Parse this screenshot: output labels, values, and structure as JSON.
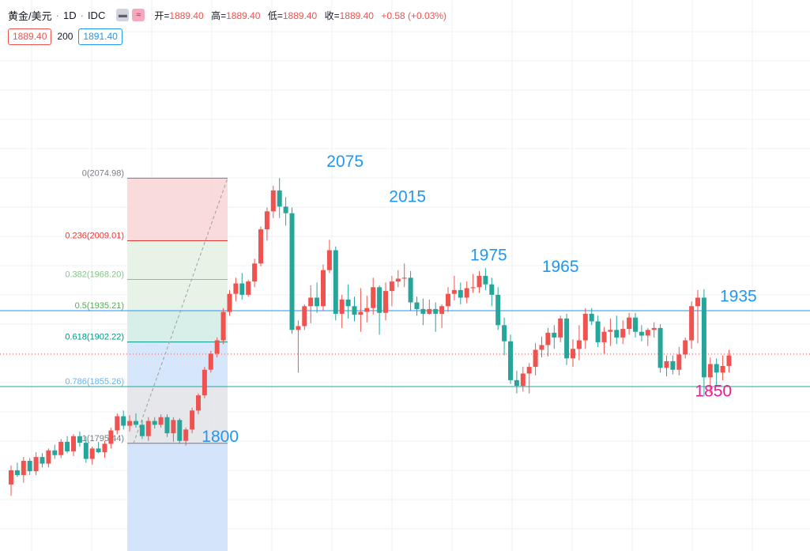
{
  "header": {
    "symbol": "黄金/美元",
    "interval": "1D",
    "source": "IDC",
    "sep": "·",
    "mode_icons": [
      "minus-icon",
      "wave-icon"
    ],
    "open_label": "开=",
    "open": "1889.40",
    "high_label": "高=",
    "high": "1889.40",
    "low_label": "低=",
    "low": "1889.40",
    "close_label": "收=",
    "close": "1889.40",
    "change": "+0.58 (+0.03%)"
  },
  "quote": {
    "bid": "1889.40",
    "spread": "200",
    "ask": "1891.40"
  },
  "colors": {
    "up": "#ef5350",
    "down": "#26a69a",
    "annotation": "#2196f3",
    "annotation_low": "#e91e9c",
    "grid": "#eef0f3",
    "fib_top": "#f8d7d8",
    "fib_mid": "#e6f2e4",
    "fib_lower": "#d3ece7",
    "fib_bottom": "#e3e4e8",
    "fib_base": "#d3e4fb"
  },
  "chart_data": {
    "type": "candlestick",
    "y_range": [
      1730,
      2090
    ],
    "fib_levels": [
      {
        "ratio": "0",
        "label": "0(2074.98)",
        "price": 2074.98,
        "color": "#787b86"
      },
      {
        "ratio": "0.236",
        "label": "0.236(2009.01)",
        "price": 2009.01,
        "color": "#e53935"
      },
      {
        "ratio": "0.382",
        "label": "0.382(1968.20)",
        "price": 1968.2,
        "color": "#81c784"
      },
      {
        "ratio": "0.5",
        "label": "0.5(1935.21)",
        "price": 1935.21,
        "color": "#4caf50"
      },
      {
        "ratio": "0.618",
        "label": "0.618(1902.22)",
        "price": 1902.22,
        "color": "#009688"
      },
      {
        "ratio": "0.786",
        "label": "0.786(1855.26)",
        "price": 1855.26,
        "color": "#64b5f6"
      },
      {
        "ratio": "1",
        "label": "1(1795.44)",
        "price": 1795.44,
        "color": "#787b86"
      }
    ],
    "horizontal_lines": [
      {
        "price": 1935.21,
        "color": "#2196f3"
      },
      {
        "price": 1855.26,
        "color": "#26a69a"
      }
    ],
    "current_price_line": 1889.4,
    "annotations": [
      {
        "text": "2075",
        "price": 2087,
        "bar": 53.5,
        "color": "#2196f3"
      },
      {
        "text": "2015",
        "price": 2050,
        "bar": 63.5,
        "color": "#2196f3"
      },
      {
        "text": "1975",
        "price": 1988,
        "bar": 76.5,
        "color": "#2196f3"
      },
      {
        "text": "1965",
        "price": 1976,
        "bar": 88,
        "color": "#2196f3"
      },
      {
        "text": "1935",
        "price": 1945,
        "bar": 116.5,
        "color": "#2196f3"
      },
      {
        "text": "1850",
        "price": 1845,
        "bar": 112.5,
        "color": "#e91e9c"
      },
      {
        "text": "1800",
        "price": 1797,
        "bar": 33.5,
        "color": "#2196f3"
      }
    ],
    "candles": [
      [
        1752,
        1772,
        1740,
        1767
      ],
      [
        1767,
        1775,
        1760,
        1762
      ],
      [
        1762,
        1781,
        1754,
        1777
      ],
      [
        1777,
        1780,
        1762,
        1766
      ],
      [
        1766,
        1786,
        1762,
        1781
      ],
      [
        1781,
        1785,
        1770,
        1774
      ],
      [
        1774,
        1790,
        1770,
        1788
      ],
      [
        1788,
        1794,
        1779,
        1783
      ],
      [
        1783,
        1800,
        1780,
        1797
      ],
      [
        1797,
        1803,
        1785,
        1787
      ],
      [
        1787,
        1805,
        1782,
        1803
      ],
      [
        1803,
        1808,
        1792,
        1796
      ],
      [
        1796,
        1803,
        1775,
        1779
      ],
      [
        1779,
        1792,
        1773,
        1790
      ],
      [
        1790,
        1797,
        1785,
        1786
      ],
      [
        1786,
        1798,
        1780,
        1795
      ],
      [
        1795,
        1812,
        1790,
        1809
      ],
      [
        1809,
        1827,
        1805,
        1824
      ],
      [
        1824,
        1830,
        1810,
        1814
      ],
      [
        1814,
        1825,
        1808,
        1819
      ],
      [
        1819,
        1827,
        1812,
        1815
      ],
      [
        1815,
        1820,
        1800,
        1803
      ],
      [
        1803,
        1823,
        1798,
        1819
      ],
      [
        1819,
        1823,
        1811,
        1815
      ],
      [
        1815,
        1826,
        1812,
        1823
      ],
      [
        1823,
        1826,
        1802,
        1806
      ],
      [
        1806,
        1823,
        1797,
        1820
      ],
      [
        1820,
        1822,
        1795,
        1798
      ],
      [
        1798,
        1812,
        1793,
        1810
      ],
      [
        1810,
        1833,
        1806,
        1830
      ],
      [
        1830,
        1848,
        1826,
        1846
      ],
      [
        1846,
        1876,
        1843,
        1873
      ],
      [
        1873,
        1893,
        1870,
        1890
      ],
      [
        1890,
        1907,
        1886,
        1904
      ],
      [
        1904,
        1938,
        1900,
        1934
      ],
      [
        1934,
        1957,
        1930,
        1953
      ],
      [
        1953,
        1970,
        1945,
        1964
      ],
      [
        1964,
        1975,
        1947,
        1952
      ],
      [
        1952,
        1968,
        1950,
        1966
      ],
      [
        1966,
        1990,
        1960,
        1985
      ],
      [
        1985,
        2024,
        1982,
        2021
      ],
      [
        2021,
        2044,
        2009,
        2040
      ],
      [
        2040,
        2067,
        2033,
        2062
      ],
      [
        2062,
        2075,
        2033,
        2045
      ],
      [
        2045,
        2055,
        2025,
        2038
      ],
      [
        2038,
        2044,
        1911,
        1915
      ],
      [
        1915,
        1925,
        1870,
        1919
      ],
      [
        1919,
        1942,
        1915,
        1940
      ],
      [
        1940,
        1962,
        1922,
        1949
      ],
      [
        1949,
        1965,
        1933,
        1940
      ],
      [
        1940,
        1984,
        1935,
        1978
      ],
      [
        1978,
        2010,
        1975,
        1999
      ],
      [
        1999,
        2003,
        1925,
        1932
      ],
      [
        1932,
        1952,
        1917,
        1947
      ],
      [
        1947,
        1963,
        1927,
        1940
      ],
      [
        1940,
        1950,
        1924,
        1931
      ],
      [
        1931,
        1959,
        1913,
        1934
      ],
      [
        1934,
        1951,
        1923,
        1938
      ],
      [
        1938,
        1970,
        1931,
        1960
      ],
      [
        1960,
        1962,
        1910,
        1933
      ],
      [
        1933,
        1965,
        1925,
        1956
      ],
      [
        1956,
        1972,
        1940,
        1966
      ],
      [
        1966,
        1978,
        1960,
        1969
      ],
      [
        1969,
        1985,
        1960,
        1970
      ],
      [
        1970,
        1977,
        1935,
        1944
      ],
      [
        1944,
        1950,
        1930,
        1937
      ],
      [
        1937,
        1948,
        1920,
        1932
      ],
      [
        1932,
        1947,
        1931,
        1937
      ],
      [
        1937,
        1944,
        1913,
        1932
      ],
      [
        1932,
        1942,
        1917,
        1940
      ],
      [
        1940,
        1960,
        1934,
        1953
      ],
      [
        1953,
        1972,
        1946,
        1957
      ],
      [
        1957,
        1965,
        1942,
        1949
      ],
      [
        1949,
        1966,
        1943,
        1959
      ],
      [
        1959,
        1974,
        1954,
        1960
      ],
      [
        1960,
        1977,
        1954,
        1972
      ],
      [
        1972,
        1980,
        1957,
        1963
      ],
      [
        1963,
        1970,
        1940,
        1952
      ],
      [
        1952,
        1960,
        1915,
        1920
      ],
      [
        1920,
        1928,
        1888,
        1903
      ],
      [
        1903,
        1910,
        1858,
        1862
      ],
      [
        1862,
        1872,
        1848,
        1856
      ],
      [
        1856,
        1876,
        1850,
        1869
      ],
      [
        1869,
        1880,
        1848,
        1876
      ],
      [
        1876,
        1901,
        1867,
        1894
      ],
      [
        1894,
        1908,
        1886,
        1899
      ],
      [
        1899,
        1917,
        1887,
        1912
      ],
      [
        1912,
        1920,
        1895,
        1907
      ],
      [
        1907,
        1930,
        1902,
        1927
      ],
      [
        1927,
        1932,
        1878,
        1885
      ],
      [
        1885,
        1905,
        1876,
        1895
      ],
      [
        1895,
        1920,
        1883,
        1904
      ],
      [
        1904,
        1938,
        1895,
        1932
      ],
      [
        1932,
        1938,
        1920,
        1924
      ],
      [
        1924,
        1930,
        1897,
        1902
      ],
      [
        1902,
        1918,
        1890,
        1913
      ],
      [
        1913,
        1927,
        1898,
        1915
      ],
      [
        1915,
        1930,
        1900,
        1907
      ],
      [
        1907,
        1925,
        1900,
        1916
      ],
      [
        1916,
        1933,
        1910,
        1928
      ],
      [
        1928,
        1933,
        1907,
        1913
      ],
      [
        1913,
        1920,
        1903,
        1909
      ],
      [
        1909,
        1917,
        1898,
        1915
      ],
      [
        1915,
        1923,
        1907,
        1917
      ],
      [
        1917,
        1921,
        1870,
        1875
      ],
      [
        1875,
        1888,
        1866,
        1882
      ],
      [
        1882,
        1888,
        1868,
        1873
      ],
      [
        1873,
        1897,
        1867,
        1889
      ],
      [
        1889,
        1907,
        1885,
        1904
      ],
      [
        1904,
        1945,
        1895,
        1940
      ],
      [
        1940,
        1957,
        1901,
        1949
      ],
      [
        1949,
        1958,
        1845,
        1865
      ],
      [
        1865,
        1886,
        1848,
        1879
      ],
      [
        1879,
        1885,
        1856,
        1870
      ],
      [
        1870,
        1888,
        1862,
        1877
      ],
      [
        1877,
        1894,
        1870,
        1888
      ]
    ]
  }
}
